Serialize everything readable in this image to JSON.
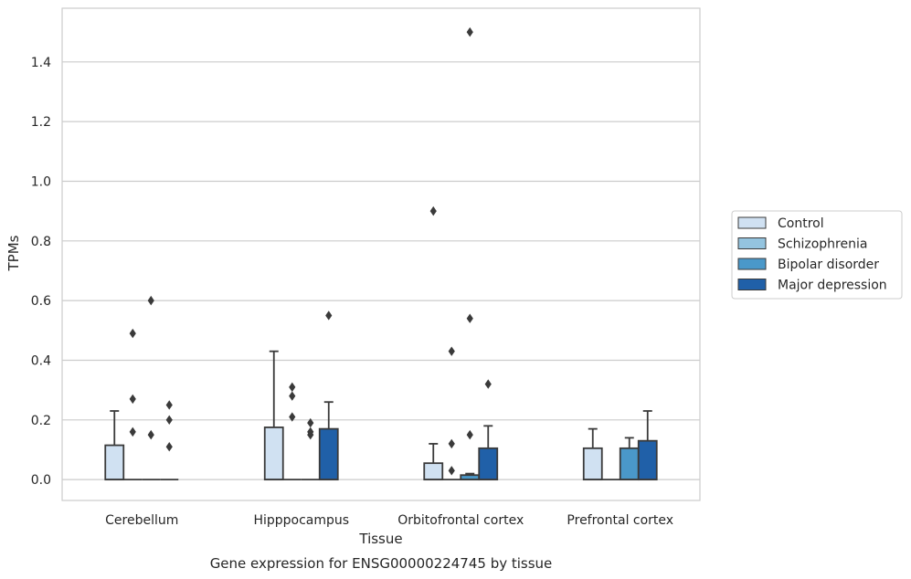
{
  "chart_data": {
    "type": "box",
    "caption": "Gene expression for ENSG00000224745 by tissue",
    "xlabel": "Tissue",
    "ylabel": "TPMs",
    "ylim": [
      -0.07,
      1.58
    ],
    "yticks": [
      0.0,
      0.2,
      0.4,
      0.6,
      0.8,
      1.0,
      1.2,
      1.4
    ],
    "ytick_labels": [
      "0.0",
      "0.2",
      "0.4",
      "0.6",
      "0.8",
      "1.0",
      "1.2",
      "1.4"
    ],
    "grid": true,
    "legend_position": "right",
    "categories": [
      "Cerebellum",
      "Hipppocampus",
      "Orbitofrontal cortex",
      "Prefrontal cortex"
    ],
    "series": [
      {
        "name": "Control",
        "color": "#d0e1f2",
        "boxes": [
          {
            "q1": 0.0,
            "median": 0.0,
            "q3": 0.115,
            "whisker_low": 0.0,
            "whisker_high": 0.23,
            "outliers": []
          },
          {
            "q1": 0.0,
            "median": 0.0,
            "q3": 0.175,
            "whisker_low": 0.0,
            "whisker_high": 0.43,
            "outliers": []
          },
          {
            "q1": 0.0,
            "median": 0.0,
            "q3": 0.055,
            "whisker_low": 0.0,
            "whisker_high": 0.12,
            "outliers": [
              0.9
            ]
          },
          {
            "q1": 0.0,
            "median": 0.0,
            "q3": 0.105,
            "whisker_low": 0.0,
            "whisker_high": 0.17,
            "outliers": []
          }
        ]
      },
      {
        "name": "Schizophrenia",
        "color": "#94c4df",
        "boxes": [
          {
            "q1": 0.0,
            "median": 0.0,
            "q3": 0.0,
            "whisker_low": 0.0,
            "whisker_high": 0.0,
            "outliers": [
              0.16,
              0.27,
              0.49
            ]
          },
          {
            "q1": 0.0,
            "median": 0.0,
            "q3": 0.0,
            "whisker_low": 0.0,
            "whisker_high": 0.0,
            "outliers": [
              0.21,
              0.28,
              0.31
            ]
          },
          {
            "q1": 0.0,
            "median": 0.0,
            "q3": 0.0,
            "whisker_low": 0.0,
            "whisker_high": 0.0,
            "outliers": [
              0.03,
              0.12,
              0.43
            ]
          },
          {
            "q1": 0.0,
            "median": 0.0,
            "q3": 0.0,
            "whisker_low": 0.0,
            "whisker_high": 0.0,
            "outliers": []
          }
        ]
      },
      {
        "name": "Bipolar disorder",
        "color": "#4a98c9",
        "boxes": [
          {
            "q1": 0.0,
            "median": 0.0,
            "q3": 0.0,
            "whisker_low": 0.0,
            "whisker_high": 0.0,
            "outliers": [
              0.15,
              0.6
            ]
          },
          {
            "q1": 0.0,
            "median": 0.0,
            "q3": 0.0,
            "whisker_low": 0.0,
            "whisker_high": 0.0,
            "outliers": [
              0.15,
              0.16,
              0.19
            ]
          },
          {
            "q1": 0.0,
            "median": 0.0,
            "q3": 0.015,
            "whisker_low": 0.0,
            "whisker_high": 0.02,
            "outliers": [
              0.15,
              0.54,
              1.5
            ]
          },
          {
            "q1": 0.0,
            "median": 0.0,
            "q3": 0.105,
            "whisker_low": 0.0,
            "whisker_high": 0.14,
            "outliers": []
          }
        ]
      },
      {
        "name": "Major depression",
        "color": "#2060a8",
        "boxes": [
          {
            "q1": 0.0,
            "median": 0.0,
            "q3": 0.0,
            "whisker_low": 0.0,
            "whisker_high": 0.0,
            "outliers": [
              0.11,
              0.2,
              0.25
            ]
          },
          {
            "q1": 0.0,
            "median": 0.0,
            "q3": 0.17,
            "whisker_low": 0.0,
            "whisker_high": 0.26,
            "outliers": [
              0.55
            ]
          },
          {
            "q1": 0.0,
            "median": 0.0,
            "q3": 0.105,
            "whisker_low": 0.0,
            "whisker_high": 0.18,
            "outliers": [
              0.32
            ]
          },
          {
            "q1": 0.0,
            "median": 0.0,
            "q3": 0.13,
            "whisker_low": 0.0,
            "whisker_high": 0.23,
            "outliers": []
          }
        ]
      }
    ]
  }
}
